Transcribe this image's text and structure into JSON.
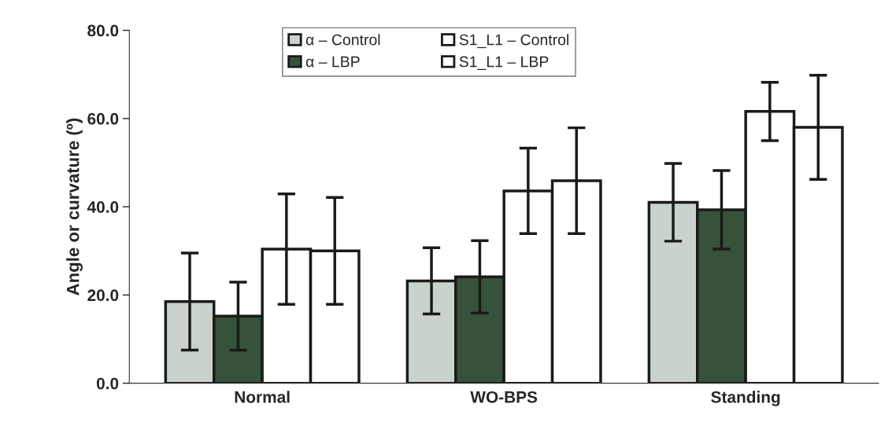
{
  "chart_data": {
    "type": "bar",
    "ylabel": "Angle or curvature (º)",
    "categories": [
      "Normal",
      "WO-BPS",
      "Standing"
    ],
    "series": [
      {
        "name": "α – Control",
        "color": "#c9d3cc",
        "values": [
          18.5,
          23.2,
          41.0
        ],
        "errors": [
          11.0,
          7.5,
          8.8
        ]
      },
      {
        "name": "α – LBP",
        "color": "#36523a",
        "values": [
          15.2,
          24.1,
          39.3
        ],
        "errors": [
          7.7,
          8.2,
          8.9
        ]
      },
      {
        "name": "S1_L1 – Control",
        "color": "#ffffff",
        "values": [
          30.4,
          43.6,
          61.6
        ],
        "errors": [
          12.5,
          9.7,
          6.6
        ]
      },
      {
        "name": "S1_L1 – LBP",
        "color": "#ffffff",
        "values": [
          30.0,
          45.9,
          58.0
        ],
        "errors": [
          12.1,
          12.0,
          11.8
        ]
      }
    ],
    "ylim": [
      0,
      80
    ],
    "yticks": [
      {
        "value": 0,
        "label": "0.0"
      },
      {
        "value": 20,
        "label": "20.0"
      },
      {
        "value": 40,
        "label": "40.0"
      },
      {
        "value": 60,
        "label": "60.0"
      },
      {
        "value": 80,
        "label": "80.0"
      }
    ],
    "grid": false,
    "legend": "top"
  }
}
